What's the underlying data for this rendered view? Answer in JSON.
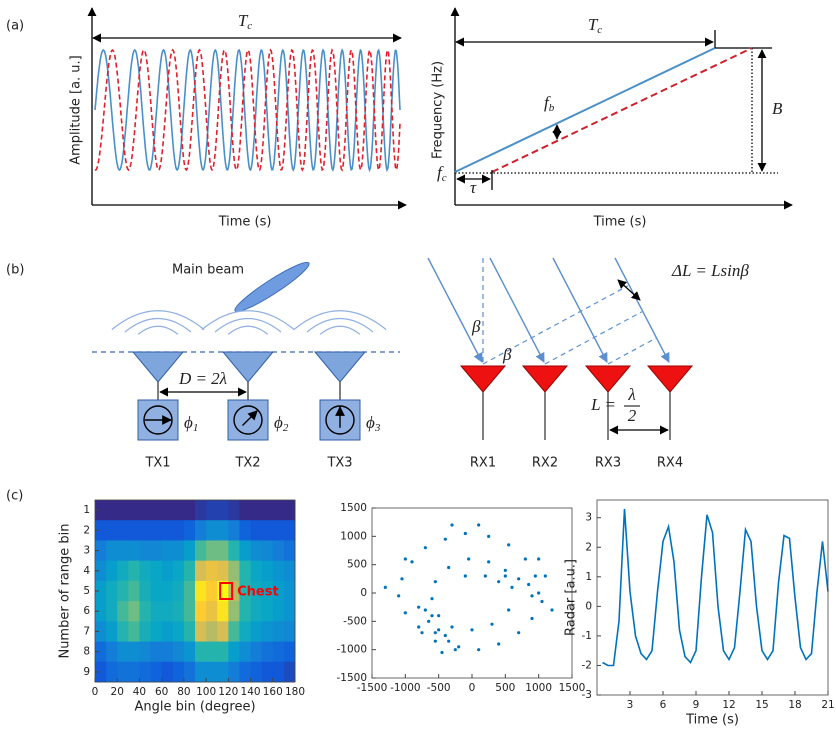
{
  "panel_labels": [
    "(a)",
    "(b)",
    "(c)"
  ],
  "panel_a": {
    "time_signal": {
      "y_label": "Amplitude [a. u.]",
      "x_label": "Time (s)",
      "period": {
        "symbol": "T",
        "subscript": "c"
      }
    },
    "frequency_chirp": {
      "y_label": "Frequency (Hz)",
      "x_label": "Time (s)",
      "period": {
        "symbol": "T",
        "subscript": "c"
      },
      "beat": {
        "symbol": "f",
        "subscript": "b"
      },
      "start": {
        "symbol": "f",
        "subscript": "c"
      },
      "delay": "τ",
      "bandwidth": "B"
    }
  },
  "panel_b": {
    "main_beam": "Main beam",
    "spacing_tx": "D = 2λ",
    "phases": [
      {
        "symbol": "ϕ",
        "subscript": "1"
      },
      {
        "symbol": "ϕ",
        "subscript": "2"
      },
      {
        "symbol": "ϕ",
        "subscript": "3"
      }
    ],
    "tx": [
      "TX1",
      "TX2",
      "TX3"
    ],
    "angle": "β",
    "path_difference": "ΔL = Lsinβ",
    "spacing_rx": {
      "lhs": "L =",
      "numerator": "λ",
      "denominator": "2"
    },
    "rx": [
      "RX1",
      "RX2",
      "RX3",
      "RX4"
    ]
  },
  "chart_data": [
    {
      "type": "heatmap",
      "x_label": "Angle bin (degree)",
      "y_label": "Number of range bin",
      "x": [
        5,
        15,
        25,
        35,
        45,
        55,
        65,
        75,
        85,
        95,
        105,
        115,
        125,
        135,
        145,
        155,
        165,
        175
      ],
      "y": [
        1,
        2,
        3,
        4,
        5,
        6,
        7,
        8,
        9
      ],
      "z": [
        [
          0.05,
          0.05,
          0.05,
          0.05,
          0.05,
          0.05,
          0.05,
          0.05,
          0.05,
          0.08,
          0.1,
          0.1,
          0.08,
          0.05,
          0.05,
          0.05,
          0.05,
          0.05
        ],
        [
          0.15,
          0.15,
          0.15,
          0.15,
          0.15,
          0.15,
          0.15,
          0.15,
          0.18,
          0.25,
          0.3,
          0.3,
          0.25,
          0.18,
          0.15,
          0.15,
          0.15,
          0.15
        ],
        [
          0.25,
          0.3,
          0.3,
          0.3,
          0.28,
          0.28,
          0.3,
          0.3,
          0.35,
          0.5,
          0.55,
          0.55,
          0.45,
          0.35,
          0.3,
          0.28,
          0.25,
          0.22
        ],
        [
          0.3,
          0.35,
          0.4,
          0.45,
          0.4,
          0.38,
          0.35,
          0.38,
          0.45,
          0.7,
          0.75,
          0.72,
          0.6,
          0.45,
          0.38,
          0.35,
          0.32,
          0.3
        ],
        [
          0.35,
          0.4,
          0.45,
          0.5,
          0.42,
          0.38,
          0.38,
          0.4,
          0.5,
          0.85,
          0.8,
          0.9,
          0.65,
          0.45,
          0.4,
          0.38,
          0.35,
          0.32
        ],
        [
          0.35,
          0.4,
          0.5,
          0.55,
          0.45,
          0.4,
          0.4,
          0.42,
          0.5,
          0.8,
          0.75,
          0.85,
          0.6,
          0.45,
          0.4,
          0.38,
          0.35,
          0.32
        ],
        [
          0.3,
          0.35,
          0.45,
          0.5,
          0.42,
          0.38,
          0.35,
          0.38,
          0.45,
          0.7,
          0.65,
          0.7,
          0.5,
          0.4,
          0.35,
          0.32,
          0.3,
          0.28
        ],
        [
          0.2,
          0.25,
          0.3,
          0.3,
          0.28,
          0.25,
          0.25,
          0.28,
          0.32,
          0.45,
          0.45,
          0.45,
          0.35,
          0.3,
          0.25,
          0.22,
          0.2,
          0.18
        ],
        [
          0.15,
          0.2,
          0.22,
          0.22,
          0.2,
          0.18,
          0.15,
          0.18,
          0.22,
          0.3,
          0.3,
          0.3,
          0.25,
          0.2,
          0.18,
          0.15,
          0.15,
          0.12
        ]
      ],
      "xlim": [
        0,
        180
      ],
      "xticks": [
        0,
        20,
        40,
        60,
        80,
        100,
        120,
        140,
        160,
        180
      ],
      "ylim": [
        0.5,
        9.5
      ],
      "yticks": [
        1,
        2,
        3,
        4,
        5,
        6,
        7,
        8,
        9
      ],
      "y_reversed": true,
      "highlight": {
        "x": 118,
        "y": 5,
        "label": "Chest",
        "color": "#ff0000"
      }
    },
    {
      "type": "scatter",
      "color": "#0072bd",
      "x": [
        1000,
        950,
        800,
        550,
        250,
        -100,
        -400,
        -700,
        -900,
        -1050,
        -1100,
        -1000,
        -800,
        -550,
        -250,
        100,
        400,
        700,
        900,
        1050,
        600,
        500,
        250,
        -50,
        -350,
        -550,
        -600,
        -500,
        -300,
        0,
        300,
        550,
        -700,
        -650,
        -550,
        -400,
        -500,
        -600,
        -450,
        -350,
        -750,
        -200,
        200,
        500,
        700,
        850,
        900,
        1100,
        1200,
        -1300,
        -300,
        100,
        400,
        -100,
        -800,
        1000,
        -1000
      ],
      "y": [
        0,
        300,
        600,
        850,
        1000,
        1050,
        950,
        800,
        550,
        250,
        -50,
        -350,
        -600,
        -850,
        -1000,
        -1000,
        -900,
        -700,
        -450,
        -150,
        100,
        400,
        550,
        600,
        450,
        200,
        -100,
        -400,
        -600,
        -650,
        -550,
        -300,
        -300,
        -500,
        -700,
        -750,
        -650,
        -400,
        -1050,
        -850,
        -700,
        -950,
        300,
        300,
        250,
        150,
        -50,
        300,
        -300,
        100,
        1200,
        1200,
        200,
        300,
        -250,
        600,
        600
      ],
      "xlim": [
        -1500,
        1500
      ],
      "xticks": [
        -1500,
        -1000,
        -500,
        0,
        500,
        1000,
        1500
      ],
      "ylim": [
        -1500,
        1500
      ],
      "yticks": [
        -1500,
        -1000,
        -500,
        0,
        500,
        1000,
        1500
      ]
    },
    {
      "type": "line",
      "x_label": "Time (s)",
      "y_label": "Radar [a.u.]",
      "color": "#0072bd",
      "x": [
        0.5,
        1,
        1.5,
        2,
        2.5,
        3,
        3.5,
        4,
        4.5,
        5,
        5.5,
        6,
        6.5,
        7,
        7.5,
        8,
        8.5,
        9,
        9.5,
        10,
        10.5,
        11,
        11.5,
        12,
        12.5,
        13,
        13.5,
        14,
        14.5,
        15,
        15.5,
        16,
        16.5,
        17,
        17.5,
        18,
        18.5,
        19,
        19.5,
        20,
        20.5,
        21
      ],
      "values": [
        -1.9,
        -2.0,
        -2.0,
        -0.5,
        3.3,
        0.5,
        -1.0,
        -1.6,
        -1.8,
        -1.5,
        0.5,
        2.2,
        2.7,
        1.5,
        -0.8,
        -1.7,
        -1.9,
        -1.5,
        1.0,
        3.1,
        2.5,
        0.0,
        -1.5,
        -1.8,
        -1.4,
        0.5,
        2.6,
        2.2,
        0.0,
        -1.5,
        -1.8,
        -1.5,
        0.8,
        2.4,
        2.3,
        0.3,
        -1.4,
        -1.8,
        -1.6,
        0.5,
        2.2,
        0.5
      ],
      "xlim": [
        0,
        21
      ],
      "xticks": [
        3,
        6,
        9,
        12,
        15,
        18,
        21
      ],
      "ylim": [
        -3,
        3.6
      ],
      "yticks": [
        -3,
        -2,
        -1,
        0,
        1,
        2,
        3
      ]
    }
  ]
}
